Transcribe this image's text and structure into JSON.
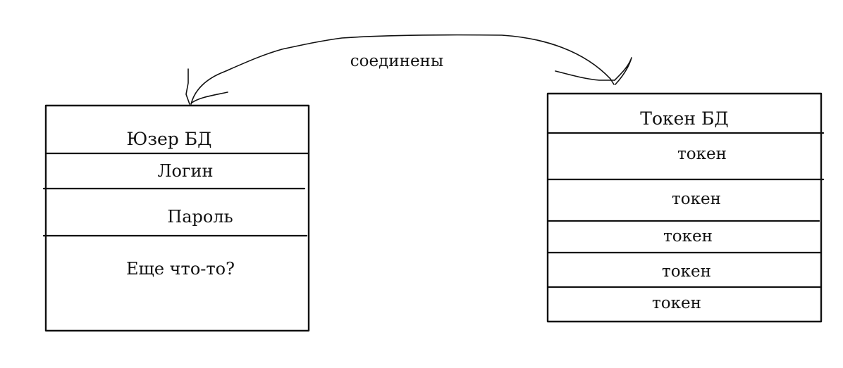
{
  "connection": {
    "label": "соединены"
  },
  "user_db": {
    "title": "Юзер БД",
    "fields": [
      "Логин",
      "Пароль",
      "Еще что-то?"
    ]
  },
  "token_db": {
    "title": "Токен БД",
    "tokens": [
      "токен",
      "токен",
      "токен",
      "токен",
      "токен"
    ]
  },
  "colors": {
    "ink": "#111111",
    "paper": "#ffffff"
  }
}
